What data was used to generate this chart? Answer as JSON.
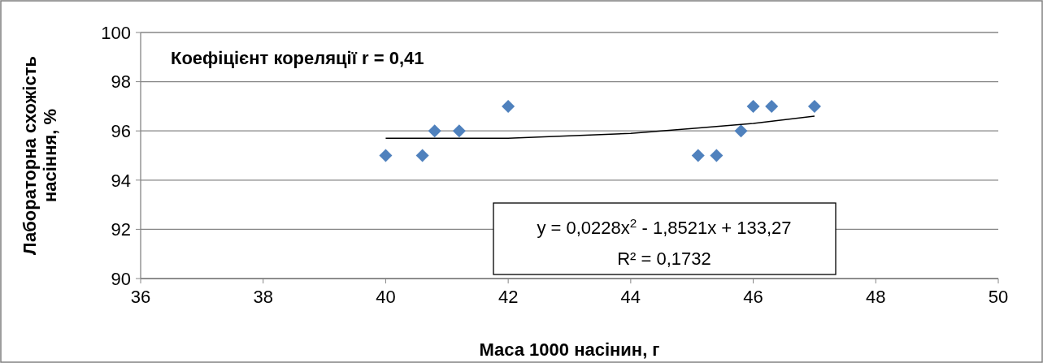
{
  "chart_data": {
    "type": "scatter",
    "xlabel": "Маса 1000 насінин, г",
    "ylabel": "Лабораторна схожість насіння, %",
    "xlim": [
      36,
      50
    ],
    "xticks": [
      36,
      38,
      40,
      42,
      44,
      46,
      48,
      50
    ],
    "ylim": [
      90,
      100
    ],
    "yticks": [
      90,
      92,
      94,
      96,
      98,
      100
    ],
    "grid": "y",
    "series": [
      {
        "marker": "diamond",
        "color": "#4f81bd",
        "x": [
          40,
          40.6,
          40.8,
          41.2,
          42,
          45.1,
          45.4,
          45.8,
          46,
          46.3,
          47
        ],
        "values": [
          95,
          95,
          96,
          96,
          97,
          95,
          95,
          96,
          97,
          97,
          97
        ]
      },
      {
        "type": "line",
        "marker": "none",
        "line_style": "solid",
        "color": "#000000",
        "x": [
          40,
          41,
          42,
          43,
          44,
          45,
          46,
          47
        ],
        "values": [
          95.7,
          95.7,
          95.7,
          95.8,
          95.9,
          96.1,
          96.3,
          96.6
        ]
      }
    ],
    "annotations": [
      {
        "text": "Коефіцієнт кореляції r = 0,41"
      },
      {
        "text": "y = 0,0228x$^{2}$ - 1,8521x + 133,27"
      },
      {
        "text": "R² = 0,1732"
      }
    ]
  }
}
